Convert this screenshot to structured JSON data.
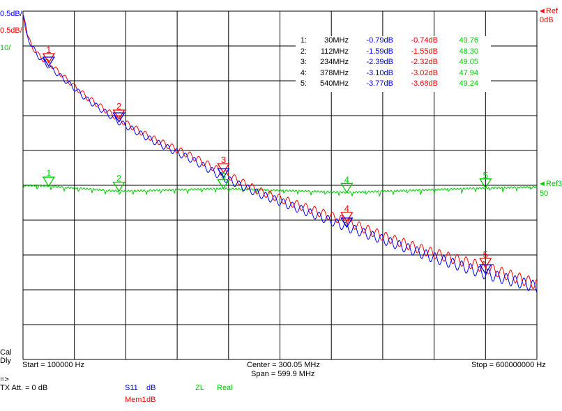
{
  "colors": {
    "s11": "#0000ff",
    "mem": "#ff0000",
    "zl": "#00cc00",
    "grid": "#000000",
    "text": "#000000"
  },
  "scale_labels": {
    "s11": "0.5dB/",
    "mem": "0.5dB/",
    "zl": "10/",
    "ref_mem_top": "Ref",
    "ref_mem_val": "0dB",
    "ref_zl_top": "Ref3",
    "ref_zl_val": "50"
  },
  "marker_table": [
    {
      "idx": "1:",
      "freq": "30MHz",
      "s11": "-0.79dB",
      "mem": "-0.74dB",
      "zl": "49.76"
    },
    {
      "idx": "2:",
      "freq": "112MHz",
      "s11": "-1.59dB",
      "mem": "-1.55dB",
      "zl": "48.30"
    },
    {
      "idx": "3:",
      "freq": "234MHz",
      "s11": "-2.39dB",
      "mem": "-2.32dB",
      "zl": "49.05"
    },
    {
      "idx": "4:",
      "freq": "378MHz",
      "s11": "-3.10dB",
      "mem": "-3.02dB",
      "zl": "47.94"
    },
    {
      "idx": "5:",
      "freq": "540MHz",
      "s11": "-3.77dB",
      "mem": "-3.68dB",
      "zl": "49.24"
    }
  ],
  "footer": {
    "cal": "Cal",
    "dly": "Dly",
    "start": "Start = 100000 Hz",
    "center": "Center = 300.05 MHz",
    "span": "Span = 599.9 MHz",
    "stop": "Stop = 600000000 Hz",
    "arrow": "=>",
    "txatt": "TX Att.  = 0 dB",
    "s11_name": "S11",
    "s11_unit": "dB",
    "mem_name": "Mem1",
    "mem_unit": "dB",
    "zl_name": "ZL",
    "zl_unit": "Real"
  },
  "chart_data": {
    "type": "line",
    "xlabel": "",
    "ylabel": "",
    "xlim_hz": [
      100000,
      600000000
    ],
    "grid": true,
    "grid_divisions": {
      "x": 10,
      "y": 10
    },
    "series": [
      {
        "name": "S11",
        "unit": "dB",
        "scale_per_div": 0.5,
        "ref_value": 0,
        "x_mhz": [
          0.1,
          5,
          10,
          20,
          30,
          50,
          75,
          112,
          150,
          200,
          234,
          275,
          325,
          378,
          425,
          475,
          540,
          575,
          600
        ],
        "y_db": [
          -0.05,
          -0.35,
          -0.5,
          -0.68,
          -0.79,
          -1.0,
          -1.27,
          -1.59,
          -1.85,
          -2.15,
          -2.39,
          -2.62,
          -2.85,
          -3.1,
          -3.3,
          -3.52,
          -3.77,
          -3.88,
          -3.96
        ]
      },
      {
        "name": "Mem1",
        "unit": "dB",
        "scale_per_div": 0.5,
        "ref_value": 0,
        "x_mhz": [
          0.1,
          5,
          10,
          20,
          30,
          50,
          75,
          112,
          150,
          200,
          234,
          275,
          325,
          378,
          425,
          475,
          540,
          575,
          600
        ],
        "y_db": [
          -0.05,
          -0.35,
          -0.5,
          -0.66,
          -0.74,
          -0.97,
          -1.24,
          -1.55,
          -1.82,
          -2.1,
          -2.32,
          -2.58,
          -2.8,
          -3.02,
          -3.25,
          -3.46,
          -3.68,
          -3.82,
          -3.92
        ]
      },
      {
        "name": "ZL",
        "unit": "Real",
        "scale_per_div": 10,
        "ref_value": 50,
        "x_mhz": [
          0.1,
          30,
          112,
          234,
          378,
          540,
          600
        ],
        "y_ohm": [
          50,
          49.76,
          48.3,
          49.05,
          47.94,
          49.24,
          49.5
        ]
      }
    ],
    "markers": [
      {
        "label": "1",
        "x_mhz": 30,
        "s11_db": -0.79,
        "mem_db": -0.74,
        "zl": 49.76
      },
      {
        "label": "2",
        "x_mhz": 112,
        "s11_db": -1.59,
        "mem_db": -1.55,
        "zl": 48.3
      },
      {
        "label": "3",
        "x_mhz": 234,
        "s11_db": -2.39,
        "mem_db": -2.32,
        "zl": 49.05
      },
      {
        "label": "4",
        "x_mhz": 378,
        "s11_db": -3.1,
        "mem_db": -3.02,
        "zl": 47.94
      },
      {
        "label": "5",
        "x_mhz": 540,
        "s11_db": -3.77,
        "mem_db": -3.68,
        "zl": 49.24
      }
    ]
  }
}
